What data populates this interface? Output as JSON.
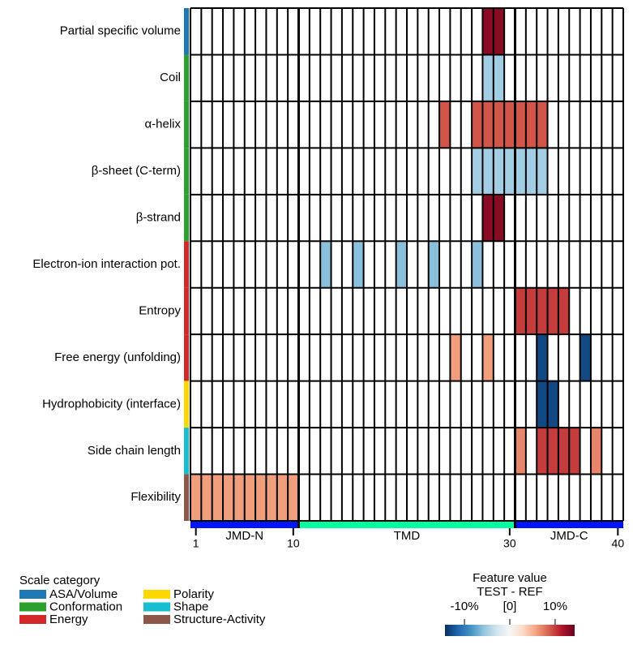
{
  "chart_data": {
    "type": "heatmap",
    "rows": [
      "Partial specific volume",
      "Coil",
      "α-helix",
      "β-sheet (C-term)",
      "β-strand",
      "Electron-ion interaction pot.",
      "Entropy",
      "Free energy (unfolding)",
      "Hydrophobicity (interface)",
      "Side chain length",
      "Flexibility"
    ],
    "row_groups": [
      0,
      1,
      1,
      1,
      1,
      2,
      2,
      2,
      3,
      4,
      5
    ],
    "groups_title": "Scale category",
    "groups": [
      {
        "name": "ASA/Volume",
        "color": "#1f77b4"
      },
      {
        "name": "Conformation",
        "color": "#2ca02c"
      },
      {
        "name": "Energy",
        "color": "#d62728"
      },
      {
        "name": "Polarity",
        "color": "#ffd700"
      },
      {
        "name": "Shape",
        "color": "#17becf"
      },
      {
        "name": "Structure-Activity",
        "color": "#8c564b"
      }
    ],
    "xlim": [
      0.5,
      40.5
    ],
    "xticks": [
      1,
      10,
      30,
      40
    ],
    "regions": [
      {
        "name": "JMD-N",
        "start": 1,
        "end": 10,
        "color": "#0015ff"
      },
      {
        "name": "TMD",
        "start": 11,
        "end": 30,
        "color": "#00ff9f"
      },
      {
        "name": "JMD-C",
        "start": 31,
        "end": 40,
        "color": "#0015ff"
      }
    ],
    "cells": [
      {
        "row": 0,
        "x": 28,
        "value": 13
      },
      {
        "row": 0,
        "x": 29,
        "value": 13
      },
      {
        "row": 1,
        "x": 28,
        "value": -5
      },
      {
        "row": 1,
        "x": 29,
        "value": -5
      },
      {
        "row": 2,
        "x": 24,
        "value": 9
      },
      {
        "row": 2,
        "x": 27,
        "value": 9
      },
      {
        "row": 2,
        "x": 28,
        "value": 9
      },
      {
        "row": 2,
        "x": 29,
        "value": 9
      },
      {
        "row": 2,
        "x": 30,
        "value": 9
      },
      {
        "row": 2,
        "x": 31,
        "value": 9
      },
      {
        "row": 2,
        "x": 32,
        "value": 9
      },
      {
        "row": 2,
        "x": 33,
        "value": 9
      },
      {
        "row": 3,
        "x": 27,
        "value": -5
      },
      {
        "row": 3,
        "x": 28,
        "value": -5
      },
      {
        "row": 3,
        "x": 29,
        "value": -5
      },
      {
        "row": 3,
        "x": 30,
        "value": -5
      },
      {
        "row": 3,
        "x": 31,
        "value": -5
      },
      {
        "row": 3,
        "x": 32,
        "value": -5
      },
      {
        "row": 3,
        "x": 33,
        "value": -5
      },
      {
        "row": 4,
        "x": 28,
        "value": 13
      },
      {
        "row": 4,
        "x": 29,
        "value": 13
      },
      {
        "row": 5,
        "x": 13,
        "value": -6
      },
      {
        "row": 5,
        "x": 16,
        "value": -6
      },
      {
        "row": 5,
        "x": 20,
        "value": -6
      },
      {
        "row": 5,
        "x": 23,
        "value": -6
      },
      {
        "row": 5,
        "x": 27,
        "value": -6
      },
      {
        "row": 6,
        "x": 31,
        "value": 10
      },
      {
        "row": 6,
        "x": 32,
        "value": 10
      },
      {
        "row": 6,
        "x": 33,
        "value": 10
      },
      {
        "row": 6,
        "x": 34,
        "value": 10
      },
      {
        "row": 6,
        "x": 35,
        "value": 10
      },
      {
        "row": 7,
        "x": 25,
        "value": 6
      },
      {
        "row": 7,
        "x": 28,
        "value": 6
      },
      {
        "row": 7,
        "x": 33,
        "value": -13
      },
      {
        "row": 7,
        "x": 37,
        "value": -13
      },
      {
        "row": 8,
        "x": 33,
        "value": -13
      },
      {
        "row": 8,
        "x": 34,
        "value": -13
      },
      {
        "row": 9,
        "x": 31,
        "value": 7
      },
      {
        "row": 9,
        "x": 33,
        "value": 10
      },
      {
        "row": 9,
        "x": 34,
        "value": 10
      },
      {
        "row": 9,
        "x": 35,
        "value": 10
      },
      {
        "row": 9,
        "x": 36,
        "value": 10
      },
      {
        "row": 9,
        "x": 38,
        "value": 7
      },
      {
        "row": 10,
        "x": 1,
        "value": 6
      },
      {
        "row": 10,
        "x": 2,
        "value": 6
      },
      {
        "row": 10,
        "x": 3,
        "value": 6
      },
      {
        "row": 10,
        "x": 4,
        "value": 6
      },
      {
        "row": 10,
        "x": 5,
        "value": 6
      },
      {
        "row": 10,
        "x": 6,
        "value": 6
      },
      {
        "row": 10,
        "x": 7,
        "value": 6
      },
      {
        "row": 10,
        "x": 8,
        "value": 6
      },
      {
        "row": 10,
        "x": 9,
        "value": 6
      },
      {
        "row": 10,
        "x": 10,
        "value": 6
      }
    ],
    "colormap": [
      "#053061",
      "#2166ac",
      "#4393c3",
      "#92c5de",
      "#d1e5f0",
      "#f7f7f7",
      "#fddbc7",
      "#f4a582",
      "#d6604d",
      "#b2182b",
      "#67001f"
    ],
    "clim": [
      -14.3,
      14.3
    ],
    "colorbar_title": [
      "Feature value",
      "TEST - REF"
    ],
    "cticks": [
      {
        "value": -10,
        "label": "-10%"
      },
      {
        "value": 0,
        "label": "[0]"
      },
      {
        "value": 10,
        "label": "10%"
      }
    ]
  }
}
